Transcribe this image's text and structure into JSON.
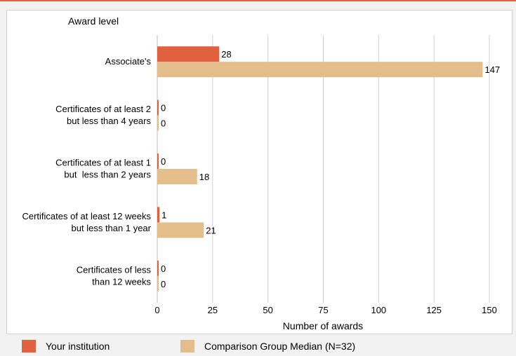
{
  "chart_data": {
    "type": "bar",
    "orientation": "horizontal",
    "title": "Award level",
    "xlabel": "Number of awards",
    "xlim": [
      0,
      150
    ],
    "xticks": [
      0,
      25,
      50,
      75,
      100,
      125,
      150
    ],
    "grid": true,
    "legend_position": "bottom",
    "categories": [
      "Associate's",
      "Certificates of at least 2 but less than 4 years",
      "Certificates of at least 1 but less than 2 years",
      "Certificates of at least 12 weeks but less than 1 year",
      "Certificates of less than 12 weeks"
    ],
    "category_label_lines": [
      [
        "Associate's"
      ],
      [
        "Certificates of at least 2",
        "but less than 4 years"
      ],
      [
        "Certificates of at least 1",
        "but  less than 2 years"
      ],
      [
        "Certificates of at least 12 weeks",
        "but less than 1 year"
      ],
      [
        "Certificates of less",
        "than 12 weeks"
      ]
    ],
    "series": [
      {
        "name": "Your institution",
        "color": "#e2603d",
        "values": [
          28,
          0,
          0,
          1,
          0
        ]
      },
      {
        "name": "Comparison Group Median (N=32)",
        "color": "#e4bd8c",
        "values": [
          147,
          0,
          18,
          21,
          0
        ]
      }
    ]
  },
  "legend": {
    "items": [
      {
        "label": "Your institution",
        "color": "#e2603d"
      },
      {
        "label": "Comparison Group Median (N=32)",
        "color": "#e4bd8c"
      }
    ]
  }
}
